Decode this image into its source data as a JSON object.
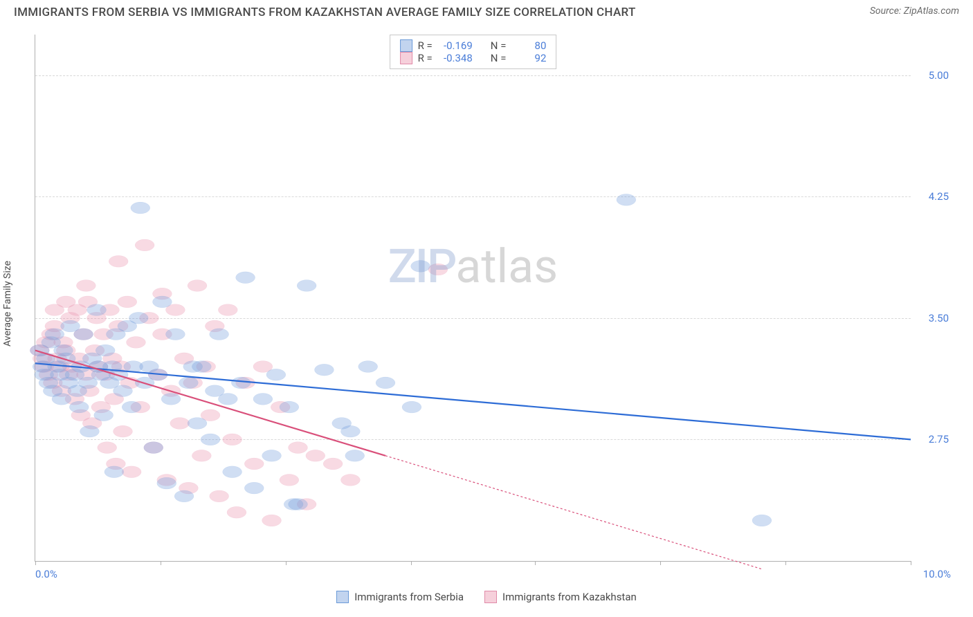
{
  "title": "IMMIGRANTS FROM SERBIA VS IMMIGRANTS FROM KAZAKHSTAN AVERAGE FAMILY SIZE CORRELATION CHART",
  "source_label": "Source: ZipAtlas.com",
  "watermark_a": "ZIP",
  "watermark_b": "atlas",
  "y_axis_label": "Average Family Size",
  "chart": {
    "type": "scatter",
    "xlim": [
      0.0,
      10.0
    ],
    "ylim": [
      2.0,
      5.25
    ],
    "x_tick_positions_pct": [
      0,
      14.3,
      28.6,
      42.9,
      57.1,
      71.4,
      85.7,
      100
    ],
    "x_min_label": "0.0%",
    "x_max_label": "10.0%",
    "y_ticks": [
      2.75,
      3.5,
      4.25,
      5.0
    ],
    "y_tick_labels": [
      "2.75",
      "3.50",
      "4.25",
      "5.00"
    ],
    "grid_color": "#d8d8d8",
    "background_color": "#ffffff",
    "axis_color": "#b0b0b0"
  },
  "series": [
    {
      "name": "Immigrants from Serbia",
      "key": "serbia",
      "fill": "rgba(120,160,220,0.35)",
      "stroke": "#6a9ad8",
      "swatch_fill": "rgba(120,160,220,0.45)",
      "swatch_border": "#6a9ad8",
      "line_color": "#2d6cd6",
      "R": "-0.169",
      "N": "80",
      "reg_solid": {
        "x1": 0.0,
        "y1": 3.22,
        "x2": 10.0,
        "y2": 2.75
      },
      "reg_dash": null,
      "points": [
        [
          0.05,
          3.3
        ],
        [
          0.08,
          3.2
        ],
        [
          0.1,
          3.15
        ],
        [
          0.12,
          3.25
        ],
        [
          0.15,
          3.1
        ],
        [
          0.18,
          3.35
        ],
        [
          0.2,
          3.05
        ],
        [
          0.22,
          3.4
        ],
        [
          0.25,
          3.2
        ],
        [
          0.28,
          3.15
        ],
        [
          0.3,
          3.0
        ],
        [
          0.32,
          3.3
        ],
        [
          0.35,
          3.25
        ],
        [
          0.38,
          3.1
        ],
        [
          0.4,
          3.45
        ],
        [
          0.45,
          3.15
        ],
        [
          0.48,
          3.05
        ],
        [
          0.5,
          2.95
        ],
        [
          0.52,
          3.2
        ],
        [
          0.55,
          3.4
        ],
        [
          0.6,
          3.1
        ],
        [
          0.62,
          2.8
        ],
        [
          0.65,
          3.25
        ],
        [
          0.7,
          3.55
        ],
        [
          0.72,
          3.2
        ],
        [
          0.75,
          3.15
        ],
        [
          0.78,
          2.9
        ],
        [
          0.8,
          3.3
        ],
        [
          0.85,
          3.1
        ],
        [
          0.88,
          3.2
        ],
        [
          0.9,
          2.55
        ],
        [
          0.92,
          3.4
        ],
        [
          0.95,
          3.15
        ],
        [
          1.0,
          3.05
        ],
        [
          1.05,
          3.45
        ],
        [
          1.1,
          2.95
        ],
        [
          1.12,
          3.2
        ],
        [
          1.18,
          3.5
        ],
        [
          1.2,
          4.18
        ],
        [
          1.25,
          3.1
        ],
        [
          1.3,
          3.2
        ],
        [
          1.35,
          2.7
        ],
        [
          1.4,
          3.15
        ],
        [
          1.45,
          3.6
        ],
        [
          1.5,
          2.48
        ],
        [
          1.55,
          3.0
        ],
        [
          1.6,
          3.4
        ],
        [
          1.7,
          2.4
        ],
        [
          1.75,
          3.1
        ],
        [
          1.8,
          3.2
        ],
        [
          1.85,
          2.85
        ],
        [
          1.9,
          3.2
        ],
        [
          2.0,
          2.75
        ],
        [
          2.05,
          3.05
        ],
        [
          2.1,
          3.4
        ],
        [
          2.2,
          3.0
        ],
        [
          2.25,
          2.55
        ],
        [
          2.35,
          3.1
        ],
        [
          2.4,
          3.75
        ],
        [
          2.5,
          2.45
        ],
        [
          2.6,
          3.0
        ],
        [
          2.7,
          2.65
        ],
        [
          2.75,
          3.15
        ],
        [
          2.9,
          2.95
        ],
        [
          2.95,
          2.35
        ],
        [
          3.0,
          2.35
        ],
        [
          3.1,
          3.7
        ],
        [
          3.3,
          3.18
        ],
        [
          3.5,
          2.85
        ],
        [
          3.6,
          2.8
        ],
        [
          3.65,
          2.65
        ],
        [
          3.8,
          3.2
        ],
        [
          4.0,
          3.1
        ],
        [
          4.3,
          2.95
        ],
        [
          4.4,
          3.82
        ],
        [
          6.75,
          4.23
        ],
        [
          8.3,
          2.25
        ]
      ]
    },
    {
      "name": "Immigrants from Kazakhstan",
      "key": "kazakhstan",
      "fill": "rgba(235,150,175,0.35)",
      "stroke": "#e08aa8",
      "swatch_fill": "rgba(235,150,175,0.45)",
      "swatch_border": "#e08aa8",
      "line_color": "#d94f7a",
      "R": "-0.348",
      "N": "92",
      "reg_solid": {
        "x1": 0.0,
        "y1": 3.3,
        "x2": 4.0,
        "y2": 2.65
      },
      "reg_dash": {
        "x1": 4.0,
        "y1": 2.65,
        "x2": 8.3,
        "y2": 1.95
      },
      "points": [
        [
          0.05,
          3.3
        ],
        [
          0.08,
          3.25
        ],
        [
          0.1,
          3.2
        ],
        [
          0.12,
          3.35
        ],
        [
          0.15,
          3.15
        ],
        [
          0.18,
          3.4
        ],
        [
          0.2,
          3.1
        ],
        [
          0.22,
          3.45
        ],
        [
          0.25,
          3.25
        ],
        [
          0.28,
          3.2
        ],
        [
          0.3,
          3.05
        ],
        [
          0.32,
          3.35
        ],
        [
          0.35,
          3.3
        ],
        [
          0.38,
          3.15
        ],
        [
          0.4,
          3.5
        ],
        [
          0.42,
          3.2
        ],
        [
          0.45,
          3.0
        ],
        [
          0.48,
          3.55
        ],
        [
          0.5,
          3.25
        ],
        [
          0.52,
          2.9
        ],
        [
          0.55,
          3.4
        ],
        [
          0.58,
          3.15
        ],
        [
          0.6,
          3.6
        ],
        [
          0.62,
          3.05
        ],
        [
          0.65,
          2.85
        ],
        [
          0.68,
          3.3
        ],
        [
          0.7,
          3.5
        ],
        [
          0.72,
          3.2
        ],
        [
          0.75,
          2.95
        ],
        [
          0.78,
          3.4
        ],
        [
          0.8,
          3.15
        ],
        [
          0.82,
          2.7
        ],
        [
          0.85,
          3.55
        ],
        [
          0.88,
          3.25
        ],
        [
          0.9,
          3.0
        ],
        [
          0.92,
          2.6
        ],
        [
          0.95,
          3.45
        ],
        [
          0.98,
          3.2
        ],
        [
          1.0,
          2.8
        ],
        [
          1.05,
          3.6
        ],
        [
          1.08,
          3.1
        ],
        [
          1.1,
          2.55
        ],
        [
          1.15,
          3.35
        ],
        [
          1.2,
          2.95
        ],
        [
          1.25,
          3.95
        ],
        [
          1.3,
          3.5
        ],
        [
          1.35,
          2.7
        ],
        [
          1.4,
          3.15
        ],
        [
          1.45,
          3.4
        ],
        [
          1.5,
          2.5
        ],
        [
          1.55,
          3.05
        ],
        [
          1.6,
          3.55
        ],
        [
          1.65,
          2.85
        ],
        [
          1.7,
          3.25
        ],
        [
          1.75,
          2.45
        ],
        [
          1.8,
          3.1
        ],
        [
          1.85,
          3.7
        ],
        [
          1.9,
          2.65
        ],
        [
          1.95,
          3.2
        ],
        [
          2.0,
          2.9
        ],
        [
          2.05,
          3.45
        ],
        [
          2.1,
          2.4
        ],
        [
          2.2,
          3.55
        ],
        [
          2.25,
          2.75
        ],
        [
          2.3,
          2.3
        ],
        [
          2.4,
          3.1
        ],
        [
          2.5,
          2.6
        ],
        [
          2.6,
          3.2
        ],
        [
          2.7,
          2.25
        ],
        [
          2.8,
          2.95
        ],
        [
          2.9,
          2.5
        ],
        [
          3.0,
          2.7
        ],
        [
          3.1,
          2.35
        ],
        [
          3.2,
          2.65
        ],
        [
          3.4,
          2.6
        ],
        [
          3.6,
          2.5
        ],
        [
          4.6,
          3.8
        ],
        [
          1.45,
          3.65
        ],
        [
          0.95,
          3.85
        ],
        [
          0.58,
          3.7
        ],
        [
          0.35,
          3.6
        ],
        [
          0.22,
          3.55
        ]
      ]
    }
  ],
  "stats_box": {
    "R_label": "R =",
    "N_label": "N ="
  }
}
